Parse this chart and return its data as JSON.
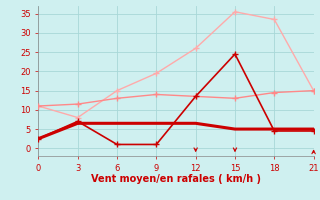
{
  "xlabel": "Vent moyen/en rafales ( km/h )",
  "bg_color": "#cff0f0",
  "grid_color": "#a8d8d8",
  "x_ticks": [
    0,
    3,
    6,
    9,
    12,
    15,
    18,
    21
  ],
  "ylim": [
    -2,
    37
  ],
  "xlim": [
    0,
    21
  ],
  "y_ticks": [
    0,
    5,
    10,
    15,
    20,
    25,
    30,
    35
  ],
  "lines": [
    {
      "x": [
        0,
        3,
        6,
        9,
        12,
        15,
        18,
        21
      ],
      "y": [
        2.5,
        7.0,
        1.0,
        1.0,
        13.5,
        24.5,
        4.5,
        4.5
      ],
      "color": "#cc0000",
      "linewidth": 1.2,
      "marker": "+",
      "markersize": 4,
      "zorder": 5
    },
    {
      "x": [
        0,
        3,
        6,
        9,
        12,
        15,
        18,
        21
      ],
      "y": [
        2.5,
        6.5,
        6.5,
        6.5,
        6.5,
        5.0,
        5.0,
        5.0
      ],
      "color": "#cc0000",
      "linewidth": 2.2,
      "marker": "none",
      "markersize": 0,
      "zorder": 4
    },
    {
      "x": [
        0,
        3,
        6,
        9,
        12,
        15,
        18,
        21
      ],
      "y": [
        11.0,
        11.5,
        13.0,
        14.0,
        13.5,
        13.0,
        14.5,
        15.0
      ],
      "color": "#ff8888",
      "linewidth": 1.0,
      "marker": "+",
      "markersize": 4,
      "zorder": 3
    },
    {
      "x": [
        0,
        3,
        6,
        9,
        12,
        15,
        18,
        21
      ],
      "y": [
        11.0,
        8.0,
        15.0,
        19.5,
        26.0,
        35.5,
        33.5,
        15.0
      ],
      "color": "#ffaaaa",
      "linewidth": 1.0,
      "marker": "+",
      "markersize": 4,
      "zorder": 2
    }
  ],
  "tick_fontsize": 6,
  "xlabel_fontsize": 7,
  "label_color": "#cc0000",
  "spine_color": "#888888"
}
